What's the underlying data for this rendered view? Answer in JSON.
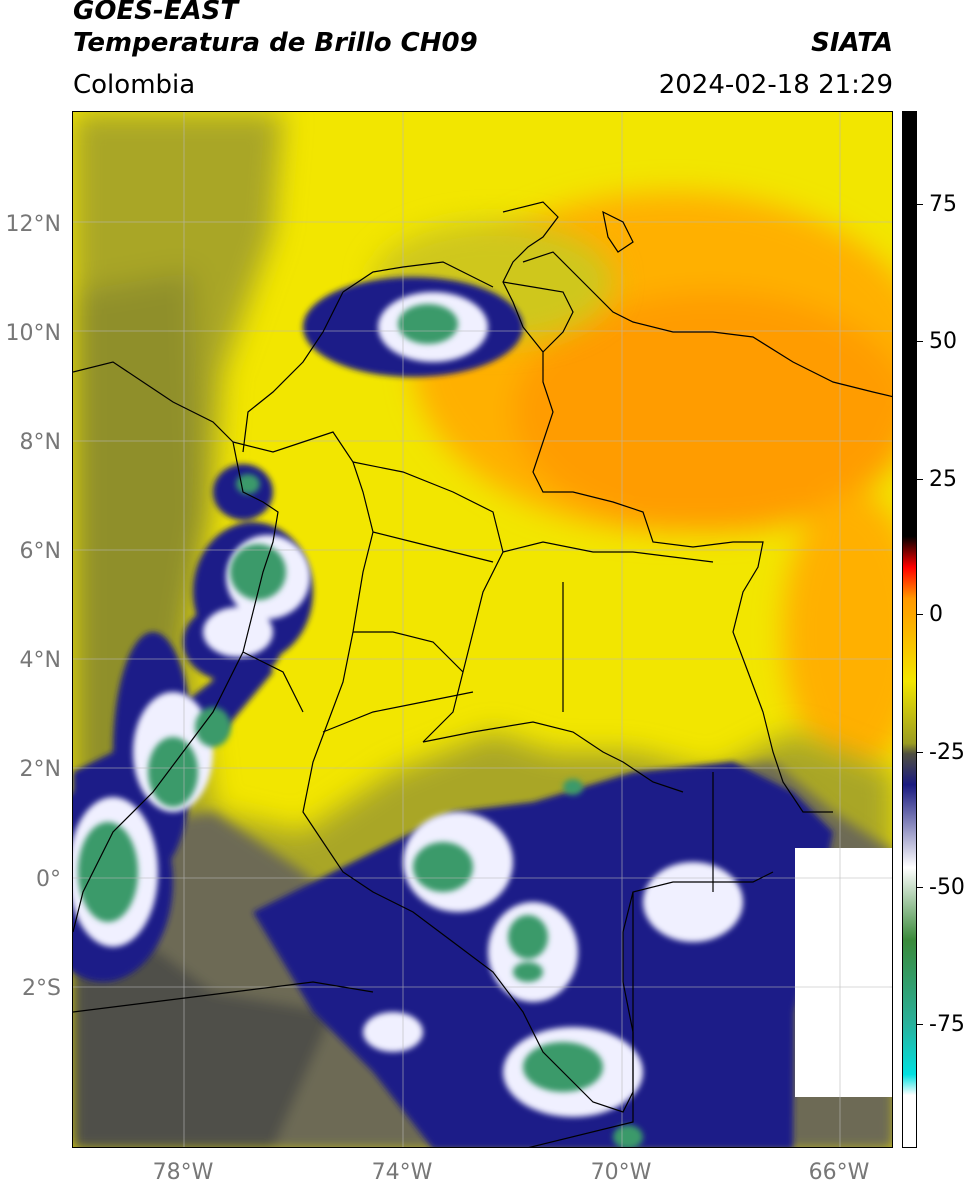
{
  "header": {
    "satellite": "GOES-EAST",
    "product": "Temperatura de Brillo CH09",
    "region": "Colombia",
    "source": "SIATA",
    "datetime": "2024-02-18 21:29"
  },
  "map": {
    "lat_labels": [
      "12°N",
      "10°N",
      "8°N",
      "6°N",
      "4°N",
      "2°N",
      "0°",
      "2°S"
    ],
    "lon_labels": [
      "78°W",
      "74°W",
      "70°W",
      "66°W"
    ],
    "colors": {
      "warm_yellow": "#f2e600",
      "orange": "#ff9800",
      "olive": "#9a9c22",
      "gray": "#5a5a50",
      "navy": "#1a1a80",
      "white": "#f2f2ff",
      "green": "#3a9a6a",
      "teal": "#2ab09a"
    }
  },
  "colorbar": {
    "tick_labels": [
      "75",
      "50",
      "25",
      "0",
      "-25",
      "-50",
      "-75"
    ],
    "colors": [
      "#000000",
      "#ff0000",
      "#ff9800",
      "#f2e600",
      "#9a9c22",
      "#505040",
      "#1a1a80",
      "#ffffff",
      "#3a8a3a",
      "#2ab09a",
      "#00e0e0",
      "#ffffff"
    ]
  }
}
